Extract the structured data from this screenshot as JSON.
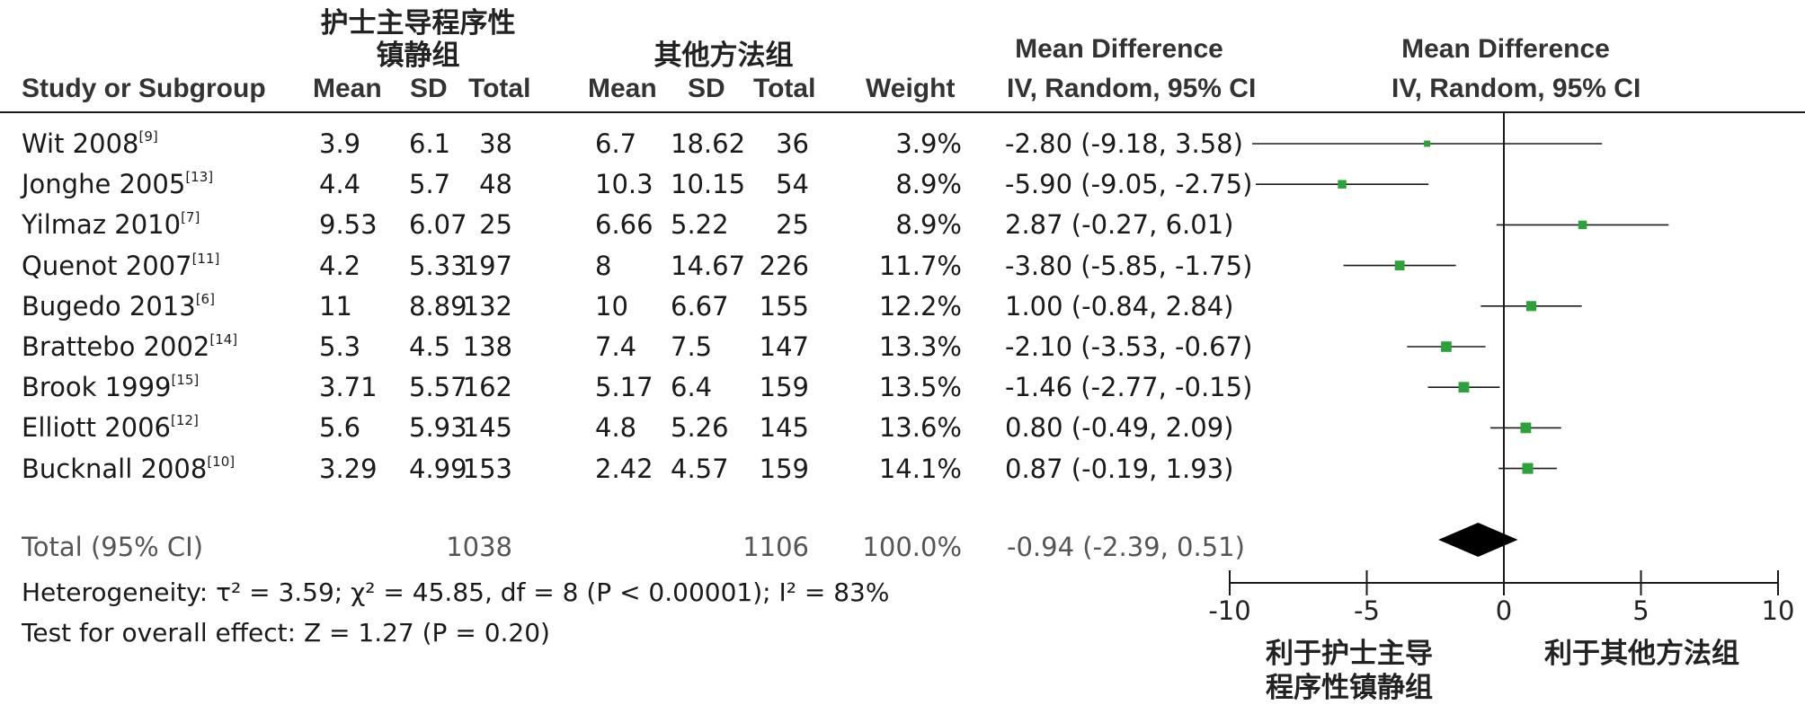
{
  "headers": {
    "group1": [
      "护士主导程序性",
      "镇静组"
    ],
    "group2": "其他方法组",
    "md_title_left": "Mean Difference",
    "md_title_right": "Mean Difference",
    "study": "Study or Subgroup",
    "mean1": "Mean",
    "sd1": "SD",
    "total1": "Total",
    "mean2": "Mean",
    "sd2": "SD",
    "total2": "Total",
    "weight": "Weight",
    "ci_left": "IV, Random, 95% CI",
    "ci_right": "IV, Random, 95% CI"
  },
  "studies": [
    {
      "name": "Wit 2008",
      "ref": "[9]",
      "mean1": "3.9",
      "sd1": "6.1",
      "total1": "38",
      "mean2": "6.7",
      "sd2": "18.62",
      "total2": "36",
      "weight": "3.9%",
      "ci": "-2.80 (-9.18, 3.58)"
    },
    {
      "name": "Jonghe 2005",
      "ref": "[13]",
      "mean1": "4.4",
      "sd1": "5.7",
      "total1": "48",
      "mean2": "10.3",
      "sd2": "10.15",
      "total2": "54",
      "weight": "8.9%",
      "ci": "-5.90 (-9.05, -2.75)"
    },
    {
      "name": "Yilmaz 2010",
      "ref": "[7]",
      "mean1": "9.53",
      "sd1": "6.07",
      "total1": "25",
      "mean2": "6.66",
      "sd2": "5.22",
      "total2": "25",
      "weight": "8.9%",
      "ci": "2.87 (-0.27, 6.01)"
    },
    {
      "name": "Quenot 2007",
      "ref": "[11]",
      "mean1": "4.2",
      "sd1": "5.33",
      "total1": "197",
      "mean2": "8",
      "sd2": "14.67",
      "total2": "226",
      "weight": "11.7%",
      "ci": "-3.80 (-5.85, -1.75)"
    },
    {
      "name": "Bugedo 2013",
      "ref": "[6]",
      "mean1": "11",
      "sd1": "8.89",
      "total1": "132",
      "mean2": "10",
      "sd2": "6.67",
      "total2": "155",
      "weight": "12.2%",
      "ci": "1.00 (-0.84, 2.84)"
    },
    {
      "name": "Brattebo 2002",
      "ref": "[14]",
      "mean1": "5.3",
      "sd1": "4.5",
      "total1": "138",
      "mean2": "7.4",
      "sd2": "7.5",
      "total2": "147",
      "weight": "13.3%",
      "ci": "-2.10 (-3.53, -0.67)"
    },
    {
      "name": "Brook 1999",
      "ref": "[15]",
      "mean1": "3.71",
      "sd1": "5.57",
      "total1": "162",
      "mean2": "5.17",
      "sd2": "6.4",
      "total2": "159",
      "weight": "13.5%",
      "ci": "-1.46 (-2.77, -0.15)"
    },
    {
      "name": "Elliott 2006",
      "ref": "[12]",
      "mean1": "5.6",
      "sd1": "5.93",
      "total1": "145",
      "mean2": "4.8",
      "sd2": "5.26",
      "total2": "145",
      "weight": "13.6%",
      "ci": "0.80 (-0.49, 2.09)"
    },
    {
      "name": "Bucknall 2008",
      "ref": "[10]",
      "mean1": "3.29",
      "sd1": "4.99",
      "total1": "153",
      "mean2": "2.42",
      "sd2": "4.57",
      "total2": "159",
      "weight": "14.1%",
      "ci": "0.87 (-0.19, 1.93)"
    }
  ],
  "total": {
    "label": "Total (95% CI)",
    "total1": "1038",
    "total2": "1106",
    "weight": "100.0%",
    "ci": "-0.94 (-2.39, 0.51)"
  },
  "heterogeneity": "Heterogeneity: τ² = 3.59; χ² = 45.85, df = 8 (P < 0.00001); I² = 83%",
  "overall_effect": "Test for overall effect: Z = 1.27 (P = 0.20)",
  "favors": {
    "left": [
      "利于护士主导",
      "程序性镇静组"
    ],
    "right": "利于其他方法组"
  },
  "colors": {
    "square": "#2ca33a",
    "diamond": "#000000",
    "line": "#1a1a1a"
  },
  "chart_data": {
    "type": "scatter",
    "title": "",
    "xlabel": "",
    "ylabel": "",
    "xlim": [
      -10,
      10
    ],
    "xticks": [
      "-10",
      "-5",
      "0",
      "5",
      "10"
    ],
    "grid": false,
    "series": [
      {
        "values": [
          {
            "y": "Wit 2008",
            "md": -2.8,
            "lo": -9.18,
            "hi": 3.58,
            "weight": 3.9
          },
          {
            "y": "Jonghe 2005",
            "md": -5.9,
            "lo": -9.05,
            "hi": -2.75,
            "weight": 8.9
          },
          {
            "y": "Yilmaz 2010",
            "md": 2.87,
            "lo": -0.27,
            "hi": 6.01,
            "weight": 8.9
          },
          {
            "y": "Quenot 2007",
            "md": -3.8,
            "lo": -5.85,
            "hi": -1.75,
            "weight": 11.7
          },
          {
            "y": "Bugedo 2013",
            "md": 1.0,
            "lo": -0.84,
            "hi": 2.84,
            "weight": 12.2
          },
          {
            "y": "Brattebo 2002",
            "md": -2.1,
            "lo": -3.53,
            "hi": -0.67,
            "weight": 13.3
          },
          {
            "y": "Brook 1999",
            "md": -1.46,
            "lo": -2.77,
            "hi": -0.15,
            "weight": 13.5
          },
          {
            "y": "Elliott 2006",
            "md": 0.8,
            "lo": -0.49,
            "hi": 2.09,
            "weight": 13.6
          },
          {
            "y": "Bucknall 2008",
            "md": 0.87,
            "lo": -0.19,
            "hi": 1.93,
            "weight": 14.1
          }
        ]
      }
    ],
    "pooled": {
      "md": -0.94,
      "lo": -2.39,
      "hi": 0.51
    }
  }
}
